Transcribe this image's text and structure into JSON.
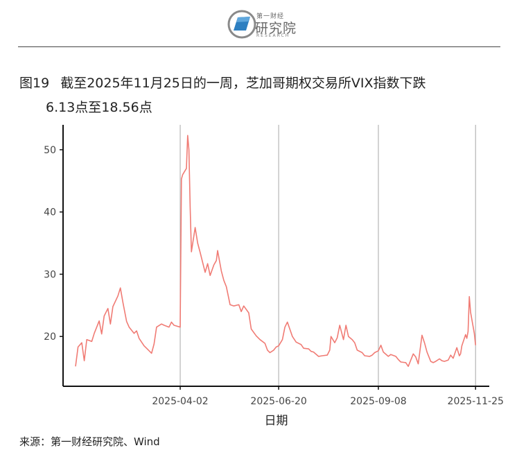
{
  "header": {
    "logo_small": "第一财经",
    "logo_main": "研究院",
    "logo_sub": "RESEARCH"
  },
  "figure": {
    "number": "图19",
    "title_line1": "截至2025年11月25日的一周，芝加哥期权交易所VIX指数下跌",
    "title_line2": "6.13点至18.56点"
  },
  "source": "来源：第一财经研究院、Wind",
  "colors": {
    "line": "#f07b74",
    "axis": "#111111",
    "grid": "#b5b5b5"
  },
  "chart_data": {
    "type": "line",
    "title": "",
    "xlabel": "日期",
    "ylabel": "",
    "x_ticks": [
      "2025-04-02",
      "2025-06-20",
      "2025-09-08",
      "2025-11-25"
    ],
    "y_ticks": [
      20,
      30,
      40,
      50
    ],
    "xlim": [
      "2024-12-29",
      "2025-12-06"
    ],
    "ylim": [
      12,
      54
    ],
    "grid": "vertical lines at x ticks",
    "series": [
      {
        "points": [
          [
            "2025-01-08",
            15.2
          ],
          [
            "2025-01-10",
            18.3
          ],
          [
            "2025-01-13",
            19.0
          ],
          [
            "2025-01-15",
            16.1
          ],
          [
            "2025-01-17",
            19.5
          ],
          [
            "2025-01-21",
            19.2
          ],
          [
            "2025-01-23",
            20.5
          ],
          [
            "2025-01-27",
            22.5
          ],
          [
            "2025-01-29",
            20.4
          ],
          [
            "2025-01-31",
            23.3
          ],
          [
            "2025-02-03",
            24.5
          ],
          [
            "2025-02-05",
            22.0
          ],
          [
            "2025-02-07",
            24.8
          ],
          [
            "2025-02-11",
            26.5
          ],
          [
            "2025-02-13",
            27.8
          ],
          [
            "2025-02-15",
            25.5
          ],
          [
            "2025-02-18",
            22.4
          ],
          [
            "2025-02-20",
            21.5
          ],
          [
            "2025-02-24",
            20.5
          ],
          [
            "2025-02-26",
            20.9
          ],
          [
            "2025-02-28",
            19.7
          ],
          [
            "2025-03-04",
            18.5
          ],
          [
            "2025-03-06",
            18.1
          ],
          [
            "2025-03-10",
            17.3
          ],
          [
            "2025-03-12",
            18.8
          ],
          [
            "2025-03-14",
            21.5
          ],
          [
            "2025-03-18",
            22.0
          ],
          [
            "2025-03-20",
            21.8
          ],
          [
            "2025-03-24",
            21.5
          ],
          [
            "2025-03-26",
            22.3
          ],
          [
            "2025-03-28",
            21.8
          ],
          [
            "2025-04-02",
            21.5
          ],
          [
            "2025-04-03",
            45.3
          ],
          [
            "2025-04-04",
            46.0
          ],
          [
            "2025-04-07",
            47.0
          ],
          [
            "2025-04-08",
            52.3
          ],
          [
            "2025-04-09",
            50.0
          ],
          [
            "2025-04-10",
            40.7
          ],
          [
            "2025-04-11",
            33.6
          ],
          [
            "2025-04-14",
            37.5
          ],
          [
            "2025-04-16",
            35.0
          ],
          [
            "2025-04-18",
            33.5
          ],
          [
            "2025-04-22",
            30.3
          ],
          [
            "2025-04-24",
            31.7
          ],
          [
            "2025-04-26",
            29.8
          ],
          [
            "2025-04-29",
            31.5
          ],
          [
            "2025-05-01",
            32.2
          ],
          [
            "2025-05-02",
            33.8
          ],
          [
            "2025-05-05",
            30.5
          ],
          [
            "2025-05-07",
            29.0
          ],
          [
            "2025-05-09",
            28.0
          ],
          [
            "2025-05-12",
            25.1
          ],
          [
            "2025-05-15",
            24.9
          ],
          [
            "2025-05-19",
            25.1
          ],
          [
            "2025-05-21",
            24.0
          ],
          [
            "2025-05-23",
            24.9
          ],
          [
            "2025-05-27",
            23.8
          ],
          [
            "2025-05-29",
            21.2
          ],
          [
            "2025-06-02",
            20.1
          ],
          [
            "2025-06-05",
            19.5
          ],
          [
            "2025-06-09",
            18.9
          ],
          [
            "2025-06-11",
            17.8
          ],
          [
            "2025-06-13",
            17.4
          ],
          [
            "2025-06-16",
            17.8
          ],
          [
            "2025-06-18",
            18.3
          ],
          [
            "2025-06-20",
            18.5
          ],
          [
            "2025-06-23",
            19.5
          ],
          [
            "2025-06-25",
            21.5
          ],
          [
            "2025-06-27",
            22.3
          ],
          [
            "2025-07-01",
            20.0
          ],
          [
            "2025-07-04",
            19.1
          ],
          [
            "2025-07-08",
            18.7
          ],
          [
            "2025-07-10",
            18.1
          ],
          [
            "2025-07-14",
            18.0
          ],
          [
            "2025-07-16",
            17.6
          ],
          [
            "2025-07-18",
            17.5
          ],
          [
            "2025-07-22",
            16.8
          ],
          [
            "2025-07-25",
            16.9
          ],
          [
            "2025-07-29",
            17.0
          ],
          [
            "2025-07-31",
            17.8
          ],
          [
            "2025-08-01",
            20.0
          ],
          [
            "2025-08-04",
            19.0
          ],
          [
            "2025-08-06",
            19.8
          ],
          [
            "2025-08-08",
            21.8
          ],
          [
            "2025-08-11",
            19.5
          ],
          [
            "2025-08-13",
            21.8
          ],
          [
            "2025-08-15",
            20.0
          ],
          [
            "2025-08-18",
            19.5
          ],
          [
            "2025-08-20",
            19.0
          ],
          [
            "2025-08-22",
            17.8
          ],
          [
            "2025-08-26",
            17.4
          ],
          [
            "2025-08-28",
            16.9
          ],
          [
            "2025-09-01",
            16.8
          ],
          [
            "2025-09-03",
            17.0
          ],
          [
            "2025-09-05",
            17.4
          ],
          [
            "2025-09-08",
            17.7
          ],
          [
            "2025-09-10",
            18.6
          ],
          [
            "2025-09-12",
            17.5
          ],
          [
            "2025-09-16",
            16.8
          ],
          [
            "2025-09-18",
            17.1
          ],
          [
            "2025-09-22",
            16.8
          ],
          [
            "2025-09-24",
            16.3
          ],
          [
            "2025-09-26",
            15.9
          ],
          [
            "2025-09-30",
            15.8
          ],
          [
            "2025-10-02",
            15.2
          ],
          [
            "2025-10-06",
            17.2
          ],
          [
            "2025-10-08",
            16.7
          ],
          [
            "2025-10-10",
            15.6
          ],
          [
            "2025-10-13",
            20.2
          ],
          [
            "2025-10-15",
            19.0
          ],
          [
            "2025-10-17",
            17.5
          ],
          [
            "2025-10-20",
            16.0
          ],
          [
            "2025-10-22",
            15.8
          ],
          [
            "2025-10-24",
            16.0
          ],
          [
            "2025-10-27",
            16.4
          ],
          [
            "2025-10-29",
            16.1
          ],
          [
            "2025-10-31",
            16.0
          ],
          [
            "2025-11-03",
            16.2
          ],
          [
            "2025-11-05",
            17.0
          ],
          [
            "2025-11-07",
            16.5
          ],
          [
            "2025-11-10",
            18.2
          ],
          [
            "2025-11-12",
            16.9
          ],
          [
            "2025-11-13",
            17.2
          ],
          [
            "2025-11-14",
            18.5
          ],
          [
            "2025-11-17",
            20.3
          ],
          [
            "2025-11-18",
            19.7
          ],
          [
            "2025-11-19",
            20.8
          ],
          [
            "2025-11-20",
            26.4
          ],
          [
            "2025-11-21",
            23.9
          ],
          [
            "2025-11-24",
            20.5
          ],
          [
            "2025-11-25",
            18.6
          ]
        ]
      }
    ]
  }
}
